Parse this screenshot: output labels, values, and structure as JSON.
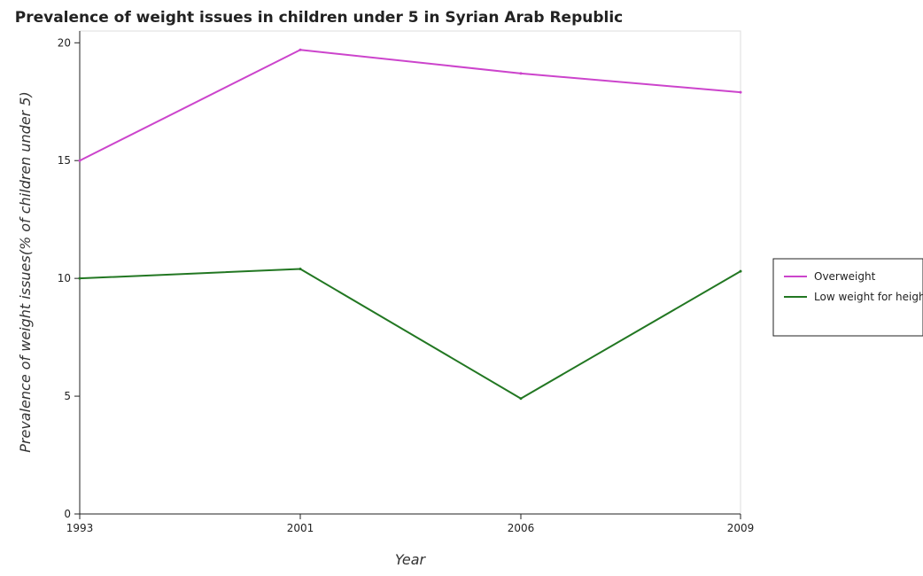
{
  "chart_data": {
    "type": "line",
    "title": "Prevalence of weight issues in children under 5 in Syrian Arab Republic",
    "xlabel": "Year",
    "ylabel": "Prevalence of weight issues(% of children under 5)",
    "categories": [
      "1993",
      "2001",
      "2006",
      "2009"
    ],
    "ylim": [
      0,
      20.5
    ],
    "yticks": [
      0,
      5,
      10,
      15,
      20
    ],
    "ytick_labels": [
      "0",
      "5",
      "10",
      "15",
      "20"
    ],
    "grid": false,
    "legend_position": "right",
    "series": [
      {
        "name": "Overweight",
        "color": "#cc44cc",
        "values": [
          15.0,
          19.7,
          18.7,
          17.9
        ]
      },
      {
        "name": "Low weight for height",
        "color": "#227722",
        "values": [
          10.0,
          10.4,
          4.9,
          10.3
        ]
      }
    ]
  }
}
